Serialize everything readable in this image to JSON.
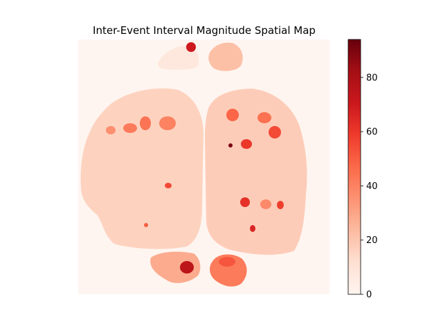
{
  "chart_data": {
    "type": "heatmap",
    "title": "Inter-Event Interval Magnitude Spatial Map",
    "xlabel": "",
    "ylabel": "",
    "axes_visible": false,
    "colormap": "Reds",
    "colorbar": {
      "vmin": 0,
      "vmax": 94,
      "ticks": [
        0,
        20,
        40,
        60,
        80
      ],
      "tick_labels": [
        "0",
        "20",
        "40",
        "60",
        "80"
      ]
    },
    "background_value": 0,
    "regions": [
      {
        "name": "left-hemisphere",
        "base_value": 16
      },
      {
        "name": "right-hemisphere",
        "base_value": 18
      },
      {
        "name": "olfactory-left",
        "base_value": 8
      },
      {
        "name": "olfactory-right",
        "base_value": 22
      },
      {
        "name": "cerebellum-left",
        "base_value": 28
      },
      {
        "name": "cerebellum-right",
        "base_value": 42
      }
    ],
    "hotspots": [
      {
        "value": 70,
        "label": "top-olfactory"
      },
      {
        "value": 42,
        "label": "left-anterior-1"
      },
      {
        "value": 44,
        "label": "left-anterior-2"
      },
      {
        "value": 40,
        "label": "left-anterior-3"
      },
      {
        "value": 36,
        "label": "left-anterior-4"
      },
      {
        "value": 48,
        "label": "right-anterior-1"
      },
      {
        "value": 55,
        "label": "right-anterior-2"
      },
      {
        "value": 45,
        "label": "right-anterior-3"
      },
      {
        "value": 60,
        "label": "right-mid-1"
      },
      {
        "value": 55,
        "label": "left-mid-1"
      },
      {
        "value": 62,
        "label": "right-mid-2"
      },
      {
        "value": 58,
        "label": "right-mid-3"
      },
      {
        "value": 66,
        "label": "right-mid-4"
      },
      {
        "value": 90,
        "label": "right-dark-speck"
      },
      {
        "value": 75,
        "label": "cerebellum-hot"
      },
      {
        "value": 52,
        "label": "cerebellum-right-spot"
      },
      {
        "value": 50,
        "label": "left-posterior-1"
      },
      {
        "value": 38,
        "label": "right-posterior-1"
      }
    ]
  }
}
